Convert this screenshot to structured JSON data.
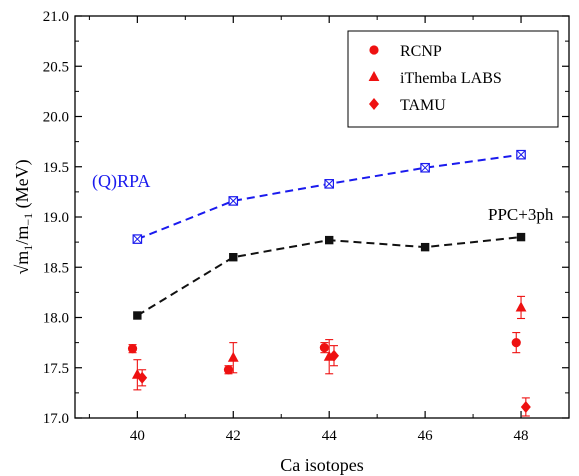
{
  "chart_data": {
    "type": "scatter",
    "xlabel": "Ca isotopes",
    "ylabel_main": "√m",
    "ylabel_sub1": "1",
    "ylabel_mid": "/m",
    "ylabel_sub2": "−1",
    "ylabel_unit": " (MeV)",
    "xlim": [
      38.7,
      49
    ],
    "ylim": [
      17.0,
      21.0
    ],
    "xticks": [
      40,
      42,
      44,
      46,
      48
    ],
    "xtick_labels": [
      "40",
      "42",
      "44",
      "46",
      "48"
    ],
    "yticks": [
      17.0,
      17.5,
      18.0,
      18.5,
      19.0,
      19.5,
      20.0,
      20.5,
      21.0
    ],
    "ytick_labels": [
      "17.0",
      "17.5",
      "18.0",
      "18.5",
      "19.0",
      "19.5",
      "20.0",
      "20.5",
      "21.0"
    ],
    "grid": false,
    "legend_position": "top-right",
    "colors": {
      "experiment": "#ee1111",
      "rpa": "#1a1aee",
      "ppc": "#111111"
    },
    "theory": [
      {
        "label": "(Q)RPA",
        "style": "dashed-boxed-x",
        "color": "#1a1aee",
        "x": [
          40,
          42,
          44,
          46,
          48
        ],
        "y": [
          18.78,
          19.16,
          19.33,
          19.49,
          19.62
        ]
      },
      {
        "label": "PPC+3ph",
        "style": "dashed-filled-square",
        "color": "#111111",
        "x": [
          40,
          42,
          44,
          46,
          48
        ],
        "y": [
          18.02,
          18.6,
          18.77,
          18.7,
          18.8
        ]
      }
    ],
    "series": [
      {
        "name": "RCNP",
        "marker": "circle",
        "points": [
          {
            "x": 39.9,
            "y": 17.69,
            "err": 0.04
          },
          {
            "x": 41.9,
            "y": 17.48,
            "err": 0.04
          },
          {
            "x": 43.9,
            "y": 17.7,
            "err": 0.05
          },
          {
            "x": 47.9,
            "y": 17.75,
            "err": 0.1
          }
        ]
      },
      {
        "name": "iThemba LABS",
        "marker": "triangle",
        "points": [
          {
            "x": 40.0,
            "y": 17.43,
            "err": 0.15
          },
          {
            "x": 42.0,
            "y": 17.6,
            "err": 0.15
          },
          {
            "x": 44.0,
            "y": 17.61,
            "err": 0.17
          },
          {
            "x": 48.0,
            "y": 18.1,
            "err": 0.11
          }
        ]
      },
      {
        "name": "TAMU",
        "marker": "diamond",
        "points": [
          {
            "x": 40.1,
            "y": 17.4,
            "err": 0.08
          },
          {
            "x": 44.1,
            "y": 17.62,
            "err": 0.1
          },
          {
            "x": 48.1,
            "y": 17.11,
            "err": 0.09
          }
        ]
      }
    ]
  }
}
